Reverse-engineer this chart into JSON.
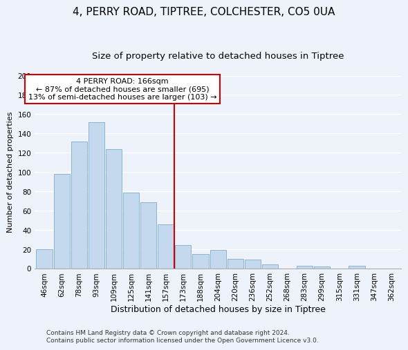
{
  "title": "4, PERRY ROAD, TIPTREE, COLCHESTER, CO5 0UA",
  "subtitle": "Size of property relative to detached houses in Tiptree",
  "xlabel": "Distribution of detached houses by size in Tiptree",
  "ylabel": "Number of detached properties",
  "bar_labels": [
    "46sqm",
    "62sqm",
    "78sqm",
    "93sqm",
    "109sqm",
    "125sqm",
    "141sqm",
    "157sqm",
    "173sqm",
    "188sqm",
    "204sqm",
    "220sqm",
    "236sqm",
    "252sqm",
    "268sqm",
    "283sqm",
    "299sqm",
    "315sqm",
    "331sqm",
    "347sqm",
    "362sqm"
  ],
  "bar_values": [
    20,
    98,
    132,
    152,
    124,
    79,
    69,
    46,
    24,
    15,
    19,
    10,
    9,
    4,
    0,
    3,
    2,
    0,
    3,
    0,
    0
  ],
  "bar_color": "#c5d9ee",
  "bar_edge_color": "#8ab4d4",
  "vline_color": "#cc0000",
  "annotation_line1": "4 PERRY ROAD: 166sqm",
  "annotation_line2": "← 87% of detached houses are smaller (695)",
  "annotation_line3": "13% of semi-detached houses are larger (103) →",
  "annotation_box_color": "#ffffff",
  "annotation_box_edge": "#cc0000",
  "ylim": [
    0,
    200
  ],
  "yticks": [
    0,
    20,
    40,
    60,
    80,
    100,
    120,
    140,
    160,
    180,
    200
  ],
  "footer_line1": "Contains HM Land Registry data © Crown copyright and database right 2024.",
  "footer_line2": "Contains public sector information licensed under the Open Government Licence v3.0.",
  "bg_color": "#eef2fa",
  "grid_color": "#ffffff",
  "title_fontsize": 11,
  "subtitle_fontsize": 9.5,
  "tick_fontsize": 7.5,
  "ylabel_fontsize": 8,
  "xlabel_fontsize": 9,
  "annotation_fontsize": 8,
  "footer_fontsize": 6.5
}
